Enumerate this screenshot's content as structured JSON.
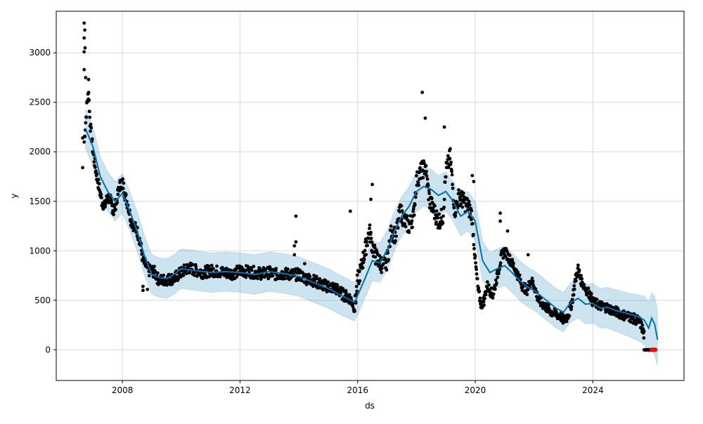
{
  "chart_data": {
    "type": "scatter",
    "xlabel": "ds",
    "ylabel": "y",
    "xlim": [
      2005.75,
      2027.1
    ],
    "ylim": [
      -310,
      3420
    ],
    "xticks": [
      2008,
      2012,
      2016,
      2020,
      2024
    ],
    "yticks": [
      0,
      500,
      1000,
      1500,
      2000,
      2500,
      3000
    ],
    "grid": true,
    "colors": {
      "observed": "#000000",
      "forecast_line": "#0072B2",
      "uncertainty_band": "#0072B2",
      "highlight": "#ff0000"
    },
    "series": [
      {
        "role": "forecast",
        "x": [
          2006.75,
          2007.0,
          2007.25,
          2007.5,
          2007.75,
          2008.0,
          2008.25,
          2008.5,
          2008.75,
          2009.0,
          2009.25,
          2009.5,
          2009.75,
          2010.0,
          2010.5,
          2011.0,
          2011.5,
          2012.0,
          2012.5,
          2013.0,
          2013.5,
          2014.0,
          2014.5,
          2015.0,
          2015.5,
          2015.9,
          2016.25,
          2016.5,
          2016.75,
          2017.0,
          2017.25,
          2017.5,
          2017.75,
          2018.0,
          2018.25,
          2018.5,
          2018.75,
          2019.0,
          2019.25,
          2019.5,
          2019.75,
          2020.0,
          2020.25,
          2020.5,
          2020.75,
          2021.0,
          2021.25,
          2021.5,
          2021.75,
          2022.0,
          2022.25,
          2022.5,
          2022.75,
          2023.0,
          2023.25,
          2023.5,
          2023.75,
          2024.0,
          2024.25,
          2024.5,
          2024.75,
          2025.0,
          2025.25,
          2025.5,
          2025.75,
          2025.9,
          2026.0,
          2026.1,
          2026.2
        ],
        "yhat": [
          2230,
          2050,
          1750,
          1600,
          1500,
          1580,
          1400,
          1200,
          950,
          760,
          730,
          720,
          760,
          820,
          800,
          780,
          790,
          780,
          760,
          790,
          770,
          740,
          680,
          620,
          540,
          480,
          720,
          900,
          880,
          1000,
          1200,
          1350,
          1450,
          1600,
          1650,
          1620,
          1560,
          1600,
          1500,
          1350,
          1400,
          1300,
          900,
          780,
          820,
          850,
          780,
          700,
          640,
          600,
          540,
          480,
          420,
          380,
          480,
          520,
          460,
          470,
          420,
          430,
          400,
          380,
          360,
          340,
          300,
          220,
          320,
          260,
          100
        ],
        "yhat_lower": [
          2030,
          1850,
          1550,
          1400,
          1300,
          1380,
          1200,
          1000,
          750,
          560,
          530,
          520,
          560,
          620,
          600,
          580,
          590,
          580,
          560,
          590,
          570,
          540,
          480,
          420,
          340,
          290,
          520,
          700,
          680,
          800,
          1000,
          1150,
          1250,
          1400,
          1450,
          1420,
          1360,
          1400,
          1300,
          1150,
          1200,
          1100,
          700,
          580,
          620,
          650,
          580,
          500,
          440,
          400,
          340,
          280,
          220,
          180,
          280,
          320,
          260,
          270,
          220,
          220,
          190,
          160,
          130,
          100,
          50,
          -40,
          20,
          -60,
          -160
        ],
        "yhat_upper": [
          2430,
          2250,
          1950,
          1800,
          1700,
          1780,
          1600,
          1400,
          1150,
          960,
          930,
          920,
          960,
          1020,
          1000,
          980,
          990,
          980,
          960,
          990,
          970,
          940,
          880,
          820,
          740,
          680,
          920,
          1100,
          1080,
          1200,
          1400,
          1550,
          1650,
          1800,
          1850,
          1820,
          1760,
          1800,
          1700,
          1550,
          1600,
          1500,
          1100,
          980,
          1020,
          1050,
          980,
          900,
          840,
          800,
          740,
          680,
          620,
          580,
          680,
          720,
          660,
          670,
          620,
          630,
          610,
          590,
          570,
          560,
          540,
          480,
          580,
          540,
          400
        ]
      },
      {
        "role": "observed",
        "segments": [
          {
            "x": [
              2006.7,
              2006.8,
              2006.85,
              2006.9,
              2007.0,
              2007.1,
              2007.2,
              2007.3,
              2007.4,
              2007.5,
              2007.6,
              2007.7,
              2007.8,
              2007.9,
              2008.0,
              2008.1,
              2008.2,
              2008.3,
              2008.4,
              2008.5,
              2008.6,
              2008.7,
              2008.8,
              2008.9,
              2009.0,
              2009.1,
              2009.2,
              2009.3,
              2009.5,
              2009.75,
              2010.0,
              2010.25,
              2010.5,
              2010.75,
              2011.0,
              2011.25,
              2011.5,
              2011.75,
              2012.0,
              2012.25,
              2012.5,
              2012.75,
              2013.0,
              2013.25,
              2013.5,
              2013.75,
              2014.0,
              2014.25,
              2014.5,
              2014.75,
              2015.0,
              2015.25,
              2015.5,
              2015.75,
              2015.9
            ],
            "y": [
              2100,
              2500,
              2600,
              2300,
              2000,
              1800,
              1650,
              1500,
              1450,
              1550,
              1500,
              1400,
              1500,
              1650,
              1700,
              1550,
              1450,
              1300,
              1250,
              1200,
              1100,
              900,
              850,
              800,
              800,
              780,
              720,
              700,
              710,
              720,
              780,
              830,
              800,
              780,
              800,
              790,
              780,
              770,
              800,
              790,
              780,
              770,
              780,
              760,
              770,
              760,
              760,
              720,
              700,
              660,
              640,
              620,
              560,
              520,
              430
            ],
            "jitter": 120
          },
          {
            "x": [
              2015.9,
              2016.0,
              2016.1,
              2016.25,
              2016.4,
              2016.5,
              2016.6,
              2016.75,
              2016.9,
              2017.0,
              2017.15,
              2017.3,
              2017.45,
              2017.6,
              2017.75,
              2017.9,
              2018.0,
              2018.15,
              2018.3,
              2018.45,
              2018.6,
              2018.75,
              2018.9,
              2019.0,
              2019.15,
              2019.3,
              2019.45,
              2019.6,
              2019.75,
              2019.9
            ],
            "y": [
              430,
              700,
              800,
              1000,
              1200,
              1050,
              950,
              880,
              850,
              900,
              1200,
              1150,
              1400,
              1300,
              1250,
              1350,
              1700,
              1800,
              1850,
              1500,
              1400,
              1300,
              1350,
              1800,
              1950,
              1400,
              1550,
              1500,
              1450,
              1350
            ],
            "jitter": 180
          },
          {
            "x": [
              2019.9,
              2020.0,
              2020.1,
              2020.2,
              2020.3,
              2020.4,
              2020.5,
              2020.6,
              2020.75,
              2020.9,
              2021.0,
              2021.1,
              2021.2,
              2021.3,
              2021.45,
              2021.6,
              2021.75,
              2021.9,
              2022.0,
              2022.15,
              2022.3,
              2022.45,
              2022.6,
              2022.75,
              2022.9,
              2023.0,
              2023.1,
              2023.2,
              2023.3,
              2023.4,
              2023.5,
              2023.6,
              2023.75,
              2023.9,
              2024.0,
              2024.15,
              2024.3,
              2024.45,
              2024.6,
              2024.75,
              2024.9,
              2025.05,
              2025.2,
              2025.35,
              2025.5,
              2025.6,
              2025.7,
              2025.75
            ],
            "y": [
              1300,
              900,
              600,
              450,
              500,
              650,
              600,
              550,
              750,
              950,
              1000,
              950,
              900,
              850,
              750,
              650,
              600,
              700,
              650,
              500,
              460,
              420,
              380,
              360,
              340,
              300,
              320,
              380,
              500,
              700,
              820,
              700,
              620,
              560,
              480,
              460,
              440,
              430,
              410,
              390,
              370,
              350,
              340,
              320,
              300,
              280,
              200,
              130
            ],
            "jitter": 100
          }
        ],
        "outliers": [
          {
            "x": 2006.7,
            "y": 3300
          },
          {
            "x": 2006.72,
            "y": 3230
          },
          {
            "x": 2006.7,
            "y": 3150
          },
          {
            "x": 2006.73,
            "y": 3050
          },
          {
            "x": 2006.7,
            "y": 3010
          },
          {
            "x": 2006.7,
            "y": 2830
          },
          {
            "x": 2006.75,
            "y": 2750
          },
          {
            "x": 2006.85,
            "y": 2730
          },
          {
            "x": 2006.65,
            "y": 1840
          },
          {
            "x": 2006.65,
            "y": 2140
          },
          {
            "x": 2018.2,
            "y": 2600
          },
          {
            "x": 2013.9,
            "y": 1350
          },
          {
            "x": 2013.9,
            "y": 1090
          },
          {
            "x": 2013.85,
            "y": 1050
          },
          {
            "x": 2013.85,
            "y": 960
          },
          {
            "x": 2015.75,
            "y": 1400
          },
          {
            "x": 2016.5,
            "y": 1670
          },
          {
            "x": 2016.45,
            "y": 1520
          },
          {
            "x": 2020.85,
            "y": 1380
          },
          {
            "x": 2020.85,
            "y": 1300
          },
          {
            "x": 2021.1,
            "y": 1200
          },
          {
            "x": 2021.8,
            "y": 960
          },
          {
            "x": 2019.9,
            "y": 1760
          },
          {
            "x": 2019.95,
            "y": 1700
          },
          {
            "x": 2018.95,
            "y": 2250
          },
          {
            "x": 2018.3,
            "y": 2340
          },
          {
            "x": 2014.2,
            "y": 870
          },
          {
            "x": 2008.7,
            "y": 640
          },
          {
            "x": 2008.7,
            "y": 600
          },
          {
            "x": 2008.85,
            "y": 610
          }
        ]
      },
      {
        "role": "recent",
        "x": [
          2025.75,
          2025.8,
          2025.85,
          2025.9,
          2025.95,
          2026.0
        ],
        "y": [
          0,
          0,
          0,
          0,
          0,
          0
        ]
      },
      {
        "role": "highlight",
        "x": [
          2026.0,
          2026.02,
          2026.04,
          2026.06,
          2026.08,
          2026.1,
          2026.12
        ],
        "y": [
          0,
          0,
          0,
          0,
          0,
          0,
          0
        ]
      }
    ]
  }
}
